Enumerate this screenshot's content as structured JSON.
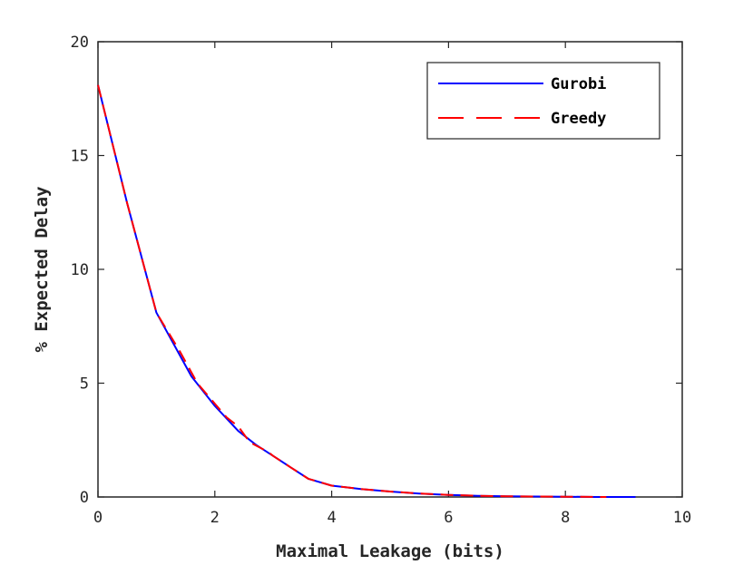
{
  "chart_data": {
    "type": "line",
    "title": "",
    "xlabel": "Maximal Leakage (bits)",
    "ylabel": "% Expected Delay",
    "xlim": [
      0,
      10
    ],
    "ylim": [
      0,
      20
    ],
    "xticks": [
      "0",
      "2",
      "4",
      "6",
      "8",
      "10"
    ],
    "yticks": [
      "0",
      "5",
      "10",
      "15",
      "20"
    ],
    "grid": false,
    "legend": "top-right",
    "series": [
      {
        "name": "Gurobi",
        "color": "#0000ff",
        "style": "solid",
        "x": [
          0,
          0.5,
          1.0,
          1.6,
          2.0,
          2.4,
          2.7,
          3.0,
          3.3,
          3.6,
          4.0,
          4.5,
          5.0,
          5.5,
          6.0,
          6.5,
          7.0,
          7.5,
          8.0,
          8.5,
          9.2
        ],
        "y": [
          18.1,
          12.9,
          8.1,
          5.3,
          4.0,
          2.9,
          2.3,
          1.8,
          1.3,
          0.8,
          0.5,
          0.35,
          0.24,
          0.15,
          0.09,
          0.05,
          0.03,
          0.02,
          0.01,
          0.0,
          0.0
        ]
      },
      {
        "name": "Greedy",
        "color": "#ff0000",
        "style": "dashed",
        "x": [
          0,
          0.5,
          1.0,
          1.4,
          1.7,
          2.0,
          2.2,
          2.4,
          2.6,
          2.9,
          3.0,
          3.3,
          3.6,
          4.0,
          4.5,
          5.0,
          5.5,
          6.0,
          6.5,
          7.0,
          7.5,
          8.0,
          8.7
        ],
        "y": [
          18.1,
          12.9,
          8.1,
          6.4,
          5.0,
          4.1,
          3.5,
          3.1,
          2.4,
          2.0,
          1.8,
          1.3,
          0.8,
          0.5,
          0.35,
          0.24,
          0.15,
          0.09,
          0.05,
          0.03,
          0.02,
          0.01,
          0.0
        ]
      }
    ]
  }
}
